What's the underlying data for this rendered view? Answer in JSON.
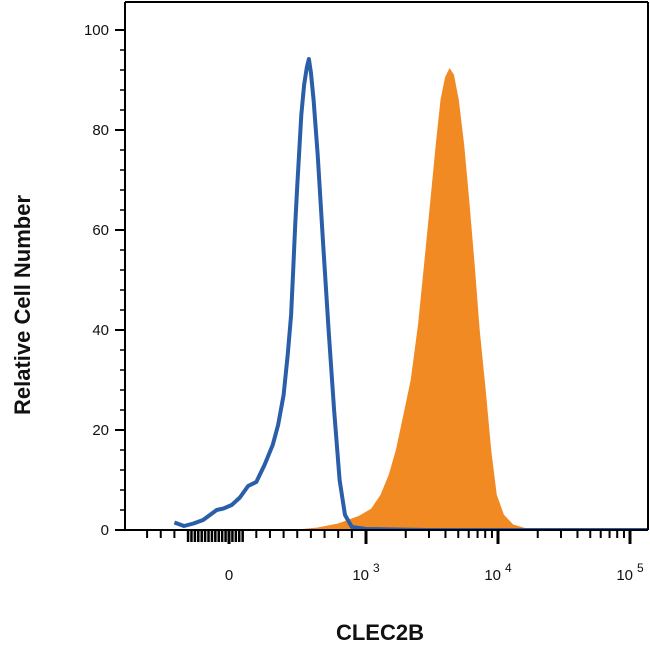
{
  "chart_data": {
    "type": "area",
    "title": "",
    "xlabel": "CLEC2B",
    "ylabel": "Relative Cell Number",
    "xscale": "biexponential",
    "ylim": [
      0,
      100
    ],
    "grid": false,
    "legend": "none",
    "y_ticks": [
      {
        "value": 0,
        "label": "0"
      },
      {
        "value": 20,
        "label": "20"
      },
      {
        "value": 40,
        "label": "40"
      },
      {
        "value": 60,
        "label": "60"
      },
      {
        "value": 80,
        "label": "80"
      },
      {
        "value": 100,
        "label": "100"
      }
    ],
    "x_ticks": [
      {
        "value": 0,
        "label": "0",
        "exponent": ""
      },
      {
        "value": 1000,
        "label": "10",
        "exponent": "3"
      },
      {
        "value": 10000,
        "label": "10",
        "exponent": "4"
      },
      {
        "value": 100000,
        "label": "10",
        "exponent": "5"
      }
    ],
    "series": [
      {
        "style": "outline",
        "color": "#2a5ea8",
        "points": [
          [
            -400,
            1.5
          ],
          [
            -330,
            0.8
          ],
          [
            -260,
            1.3
          ],
          [
            -190,
            2.0
          ],
          [
            -140,
            3.0
          ],
          [
            -90,
            4.0
          ],
          [
            -40,
            4.3
          ],
          [
            20,
            5.0
          ],
          [
            80,
            6.5
          ],
          [
            140,
            8.8
          ],
          [
            200,
            9.6
          ],
          [
            260,
            13
          ],
          [
            320,
            17
          ],
          [
            360,
            21
          ],
          [
            400,
            27
          ],
          [
            430,
            35
          ],
          [
            455,
            43
          ],
          [
            470,
            52
          ],
          [
            485,
            61
          ],
          [
            500,
            69
          ],
          [
            515,
            76
          ],
          [
            530,
            83
          ],
          [
            550,
            89
          ],
          [
            570,
            92.5
          ],
          [
            585,
            94.2
          ],
          [
            600,
            91.5
          ],
          [
            620,
            86
          ],
          [
            650,
            75
          ],
          [
            690,
            57
          ],
          [
            730,
            40
          ],
          [
            770,
            24
          ],
          [
            810,
            10
          ],
          [
            850,
            3
          ],
          [
            900,
            0.6
          ],
          [
            1000,
            0.2
          ],
          [
            3000,
            0
          ],
          [
            150000,
            0
          ]
        ]
      },
      {
        "style": "filled",
        "color": "#f28a24",
        "points": [
          [
            -400,
            0
          ],
          [
            500,
            0
          ],
          [
            650,
            0.4
          ],
          [
            800,
            1.2
          ],
          [
            950,
            2.7
          ],
          [
            1100,
            4.2
          ],
          [
            1300,
            7
          ],
          [
            1500,
            11
          ],
          [
            1700,
            16
          ],
          [
            1900,
            22
          ],
          [
            2200,
            30
          ],
          [
            2500,
            41
          ],
          [
            2800,
            54
          ],
          [
            3100,
            66
          ],
          [
            3400,
            77
          ],
          [
            3700,
            86
          ],
          [
            4000,
            90.5
          ],
          [
            4300,
            92.2
          ],
          [
            4600,
            91
          ],
          [
            5000,
            86
          ],
          [
            5500,
            77
          ],
          [
            6000,
            66
          ],
          [
            6600,
            53
          ],
          [
            7200,
            40
          ],
          [
            8000,
            28
          ],
          [
            8800,
            16
          ],
          [
            9700,
            7
          ],
          [
            11000,
            3
          ],
          [
            13000,
            1
          ],
          [
            16000,
            0.3
          ],
          [
            20000,
            0
          ],
          [
            150000,
            0
          ]
        ]
      }
    ]
  }
}
